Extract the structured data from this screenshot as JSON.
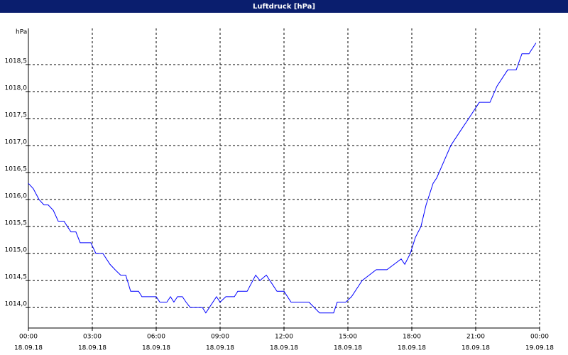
{
  "chart_data": {
    "type": "line",
    "title": "Luftdruck [hPa]",
    "y_unit": "hPa",
    "x": [
      0,
      0.23,
      0.5,
      0.73,
      0.93,
      1.17,
      1.4,
      1.67,
      1.83,
      2,
      2.23,
      2.43,
      2.93,
      3.17,
      3.5,
      3.83,
      4.07,
      4.33,
      4.57,
      4.8,
      5.17,
      5.33,
      6,
      6.17,
      6.5,
      6.67,
      6.83,
      7,
      7.23,
      7.4,
      7.6,
      8.17,
      8.33,
      8.83,
      9,
      9.27,
      9.67,
      9.83,
      10.27,
      10.67,
      10.87,
      11.17,
      11.67,
      12,
      12.33,
      13.17,
      13.67,
      14.33,
      14.5,
      14.9,
      15.17,
      15.67,
      16,
      16.33,
      16.83,
      17.17,
      17.5,
      17.67,
      17.93,
      18.17,
      18.43,
      18.67,
      19,
      19.17,
      19.5,
      19.83,
      20.33,
      20.67,
      21.17,
      21.67,
      22,
      22.5,
      22.9,
      23.17,
      23.5,
      23.83
    ],
    "series": [
      {
        "name": "Luftdruck",
        "color": "#0000ff",
        "values": [
          1016.3,
          1016.2,
          1016.0,
          1015.9,
          1015.9,
          1015.8,
          1015.6,
          1015.6,
          1015.5,
          1015.4,
          1015.4,
          1015.2,
          1015.2,
          1015.0,
          1015.0,
          1014.8,
          1014.7,
          1014.6,
          1014.6,
          1014.3,
          1014.3,
          1014.2,
          1014.2,
          1014.1,
          1014.1,
          1014.2,
          1014.1,
          1014.2,
          1014.2,
          1014.1,
          1014.0,
          1014.0,
          1013.9,
          1014.2,
          1014.1,
          1014.2,
          1014.2,
          1014.3,
          1014.3,
          1014.6,
          1014.5,
          1014.6,
          1014.3,
          1014.3,
          1014.1,
          1014.1,
          1013.9,
          1013.9,
          1014.1,
          1014.1,
          1014.2,
          1014.5,
          1014.6,
          1014.7,
          1014.7,
          1014.8,
          1014.9,
          1014.8,
          1015.0,
          1015.3,
          1015.5,
          1015.9,
          1016.3,
          1016.4,
          1016.7,
          1017.0,
          1017.3,
          1017.5,
          1017.8,
          1017.8,
          1018.1,
          1018.4,
          1018.4,
          1018.7,
          1018.7,
          1018.9
        ]
      }
    ],
    "xlim": [
      0,
      24
    ],
    "xticks": [
      {
        "value": 0,
        "label": "00:00",
        "date": "18.09.18"
      },
      {
        "value": 3,
        "label": "03:00",
        "date": "18.09.18"
      },
      {
        "value": 6,
        "label": "06:00",
        "date": "18.09.18"
      },
      {
        "value": 9,
        "label": "09:00",
        "date": "18.09.18"
      },
      {
        "value": 12,
        "label": "12:00",
        "date": "18.09.18"
      },
      {
        "value": 15,
        "label": "15:00",
        "date": "18.09.18"
      },
      {
        "value": 18,
        "label": "18:00",
        "date": "18.09.18"
      },
      {
        "value": 21,
        "label": "21:00",
        "date": "18.09.18"
      },
      {
        "value": 24,
        "label": "00:00",
        "date": "19.09.18"
      }
    ],
    "ylim": [
      1013.62,
      1019.17
    ],
    "yticks": [
      {
        "value": 1014.0,
        "label": "1014,0"
      },
      {
        "value": 1014.5,
        "label": "1014,5"
      },
      {
        "value": 1015.0,
        "label": "1015,0"
      },
      {
        "value": 1015.5,
        "label": "1015,5"
      },
      {
        "value": 1016.0,
        "label": "1016,0"
      },
      {
        "value": 1016.5,
        "label": "1016,5"
      },
      {
        "value": 1017.0,
        "label": "1017,0"
      },
      {
        "value": 1017.5,
        "label": "1017,5"
      },
      {
        "value": 1018.0,
        "label": "1018,0"
      },
      {
        "value": 1018.5,
        "label": "1018,5"
      }
    ],
    "grid": true
  }
}
